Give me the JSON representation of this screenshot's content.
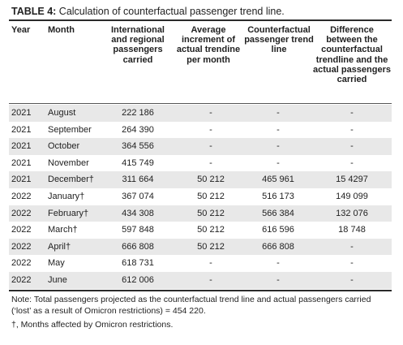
{
  "title": {
    "label": "TABLE 4:",
    "text": " Calculation of counterfactual passenger trend line."
  },
  "columns": [
    "Year",
    "Month",
    "International and regional passengers carried",
    "Average increment of actual trendine per month",
    "Counterfactual passenger trend line",
    "Difference between the counterfactual trendline and the actual passengers carried"
  ],
  "rows": [
    {
      "year": "2021",
      "month": "August",
      "passengers": "222 186",
      "avg": "-",
      "cf": "-",
      "diff": "-"
    },
    {
      "year": "2021",
      "month": "September",
      "passengers": "264 390",
      "avg": "-",
      "cf": "-",
      "diff": "-"
    },
    {
      "year": "2021",
      "month": "October",
      "passengers": "364 556",
      "avg": "-",
      "cf": "-",
      "diff": "-"
    },
    {
      "year": "2021",
      "month": "November",
      "passengers": "415 749",
      "avg": "-",
      "cf": "-",
      "diff": "-"
    },
    {
      "year": "2021",
      "month": "December†",
      "passengers": "311 664",
      "avg": "50 212",
      "cf": "465 961",
      "diff": "15 4297"
    },
    {
      "year": "2022",
      "month": "January†",
      "passengers": "367 074",
      "avg": "50 212",
      "cf": "516 173",
      "diff": "149 099"
    },
    {
      "year": "2022",
      "month": "February†",
      "passengers": "434 308",
      "avg": "50 212",
      "cf": "566 384",
      "diff": "132 076"
    },
    {
      "year": "2022",
      "month": "March†",
      "passengers": "597 848",
      "avg": "50 212",
      "cf": "616 596",
      "diff": "18 748"
    },
    {
      "year": "2022",
      "month": "April†",
      "passengers": "666 808",
      "avg": "50 212",
      "cf": "666 808",
      "diff": "-"
    },
    {
      "year": "2022",
      "month": "May",
      "passengers": "618 731",
      "avg": "-",
      "cf": "-",
      "diff": "-"
    },
    {
      "year": "2022",
      "month": "June",
      "passengers": "612 006",
      "avg": "-",
      "cf": "-",
      "diff": "-"
    }
  ],
  "notes": {
    "total": "Note: Total passengers projected as the counterfactual trend line and actual passengers carried (‘lost’ as a result of Omicron restrictions) = 454 220.",
    "dagger": "†, Months affected by Omicron restrictions."
  },
  "colors": {
    "row_shade": "#e8e8e8",
    "rule": "#2a2a2a"
  }
}
